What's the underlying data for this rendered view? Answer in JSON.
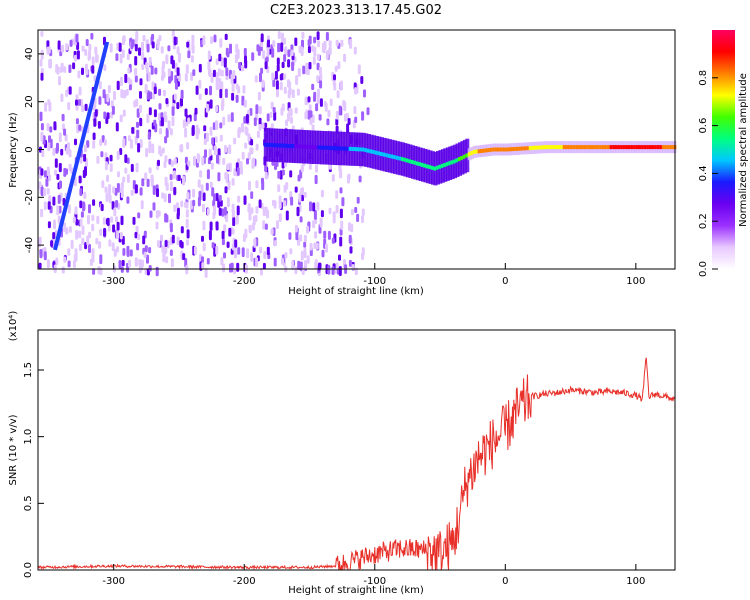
{
  "title": "C2E3.2023.313.17.45.G02",
  "colors": {
    "snr_line": "#e8302a",
    "colormap": [
      "#ffffff",
      "#e8c8ff",
      "#9b30ff",
      "#6a00f0",
      "#1a1aff",
      "#00c8ff",
      "#00ff80",
      "#40ff00",
      "#ffff00",
      "#ff8000",
      "#ff0000",
      "#ff0060"
    ]
  },
  "chart_data": [
    {
      "type": "heatmap",
      "title": "C2E3.2023.313.17.45.G02",
      "xlabel": "Height of straight line (km)",
      "ylabel": "Frequency (Hz)",
      "xlim": [
        -358,
        130
      ],
      "ylim": [
        -50,
        50
      ],
      "xticks": [
        -300,
        -200,
        -100,
        0,
        100
      ],
      "yticks": [
        -40,
        -20,
        0,
        20,
        40
      ],
      "colorbar": {
        "label": "Normalized spectral amplitude",
        "range": [
          0,
          1
        ],
        "ticks": [
          "0.0",
          "0.2",
          "0.4",
          "0.6",
          "0.8"
        ],
        "tick_values": [
          0.0,
          0.2,
          0.4,
          0.6,
          0.8
        ]
      },
      "features": {
        "noise_region_x": [
          -358,
          -130
        ],
        "ridge_center_points": [
          {
            "x": -185,
            "y": 2,
            "amp": 0.35
          },
          {
            "x": -150,
            "y": 1,
            "amp": 0.3
          },
          {
            "x": -110,
            "y": 0,
            "amp": 0.45
          },
          {
            "x": -80,
            "y": -4,
            "amp": 0.5
          },
          {
            "x": -55,
            "y": -8,
            "amp": 0.5
          },
          {
            "x": -40,
            "y": -5,
            "amp": 0.55
          },
          {
            "x": -25,
            "y": -1,
            "amp": 0.75
          },
          {
            "x": -10,
            "y": 0,
            "amp": 0.85
          },
          {
            "x": 0,
            "y": 0,
            "amp": 0.8
          },
          {
            "x": 30,
            "y": 1,
            "amp": 0.75
          },
          {
            "x": 60,
            "y": 1,
            "amp": 0.8
          },
          {
            "x": 90,
            "y": 1,
            "amp": 0.9
          },
          {
            "x": 130,
            "y": 1,
            "amp": 0.85
          }
        ],
        "diagonal_line": {
          "x0": -345,
          "y0": -42,
          "x1": -305,
          "y1": 45
        }
      }
    },
    {
      "type": "line",
      "xlabel": "Height of straight line (km)",
      "ylabel": "SNR (10 * v/v)",
      "y_multiplier": "(x10⁴)",
      "xlim": [
        -358,
        130
      ],
      "ylim": [
        0,
        1.8
      ],
      "xticks": [
        -300,
        -200,
        -100,
        0,
        100
      ],
      "yticks": [
        "0.0",
        "0.5",
        "1.0",
        "1.5"
      ],
      "ytick_values": [
        0,
        0.5,
        1.0,
        1.5
      ],
      "series": [
        {
          "x": [
            -358,
            -300,
            -200,
            -150,
            -130,
            -120,
            -100,
            -80,
            -60,
            -50,
            -40,
            -35,
            -30,
            -20,
            -10,
            0,
            10,
            20,
            30,
            40,
            50,
            60,
            70,
            80,
            90,
            100,
            105,
            108,
            110,
            115,
            130
          ],
          "values": [
            0.02,
            0.03,
            0.02,
            0.02,
            0.03,
            0.06,
            0.12,
            0.16,
            0.15,
            0.12,
            0.2,
            0.4,
            0.65,
            0.85,
            0.95,
            1.05,
            1.2,
            1.3,
            1.32,
            1.33,
            1.35,
            1.34,
            1.33,
            1.34,
            1.33,
            1.31,
            1.28,
            1.6,
            1.3,
            1.32,
            1.28
          ]
        }
      ]
    }
  ]
}
